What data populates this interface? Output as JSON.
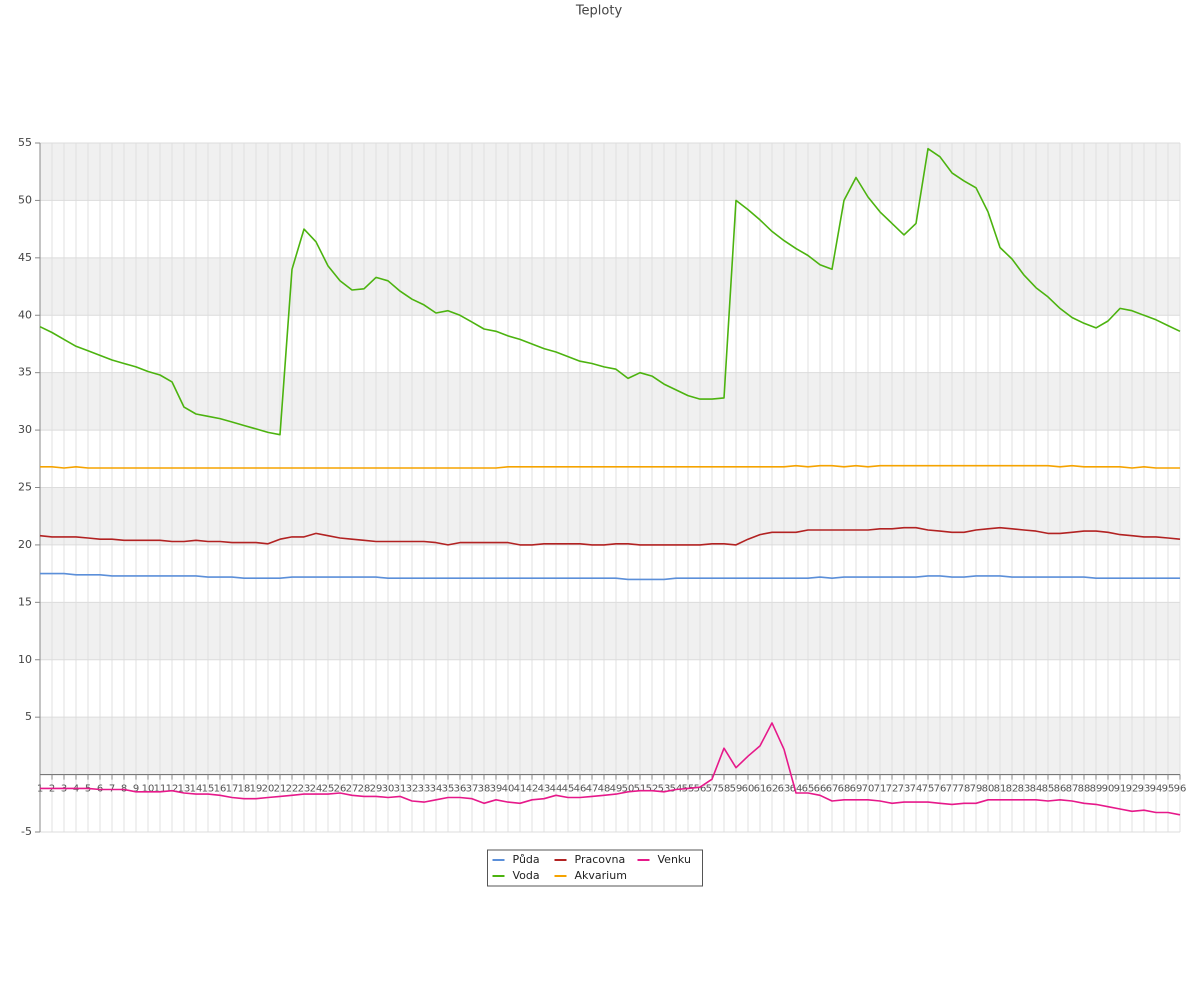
{
  "chart_data": {
    "type": "line",
    "title": "Teploty",
    "categories": [
      "1",
      "2",
      "3",
      "4",
      "5",
      "6",
      "7",
      "8",
      "9",
      "10",
      "11",
      "12",
      "13",
      "14",
      "15",
      "16",
      "17",
      "18",
      "19",
      "20",
      "21",
      "22",
      "23",
      "24",
      "25",
      "26",
      "27",
      "28",
      "29",
      "30",
      "31",
      "32",
      "33",
      "34",
      "35",
      "36",
      "37",
      "38",
      "39",
      "40",
      "41",
      "42",
      "43",
      "44",
      "45",
      "46",
      "47",
      "48",
      "49",
      "50",
      "51",
      "52",
      "53",
      "54",
      "55",
      "56",
      "57",
      "58",
      "59",
      "60",
      "61",
      "62",
      "63",
      "64",
      "65",
      "66",
      "67",
      "68",
      "69",
      "70",
      "71",
      "72",
      "73",
      "74",
      "75",
      "76",
      "77",
      "78",
      "79",
      "80",
      "81",
      "82",
      "83",
      "84",
      "85",
      "86",
      "87",
      "88",
      "89",
      "90",
      "91",
      "92",
      "93",
      "94",
      "95",
      "96"
    ],
    "series": [
      {
        "name": "Půda",
        "color": "#5b8fd9",
        "values": [
          17.5,
          17.5,
          17.5,
          17.4,
          17.4,
          17.4,
          17.3,
          17.3,
          17.3,
          17.3,
          17.3,
          17.3,
          17.3,
          17.3,
          17.2,
          17.2,
          17.2,
          17.1,
          17.1,
          17.1,
          17.1,
          17.2,
          17.2,
          17.2,
          17.2,
          17.2,
          17.2,
          17.2,
          17.2,
          17.1,
          17.1,
          17.1,
          17.1,
          17.1,
          17.1,
          17.1,
          17.1,
          17.1,
          17.1,
          17.1,
          17.1,
          17.1,
          17.1,
          17.1,
          17.1,
          17.1,
          17.1,
          17.1,
          17.1,
          17,
          17,
          17,
          17,
          17.1,
          17.1,
          17.1,
          17.1,
          17.1,
          17.1,
          17.1,
          17.1,
          17.1,
          17.1,
          17.1,
          17.1,
          17.2,
          17.1,
          17.2,
          17.2,
          17.2,
          17.2,
          17.2,
          17.2,
          17.2,
          17.3,
          17.3,
          17.2,
          17.2,
          17.3,
          17.3,
          17.3,
          17.2,
          17.2,
          17.2,
          17.2,
          17.2,
          17.2,
          17.2,
          17.1,
          17.1,
          17.1,
          17.1,
          17.1,
          17.1,
          17.1,
          17.1
        ]
      },
      {
        "name": "Voda",
        "color": "#4cb30f",
        "values": [
          39,
          38.5,
          37.9,
          37.3,
          36.9,
          36.5,
          36.1,
          35.8,
          35.5,
          35.1,
          34.8,
          34.2,
          32,
          31.4,
          31.2,
          31,
          30.7,
          30.4,
          30.1,
          29.8,
          29.6,
          44,
          47.5,
          46.4,
          44.3,
          43,
          42.2,
          42.3,
          43.3,
          43,
          42.1,
          41.4,
          40.9,
          40.2,
          40.4,
          40,
          39.4,
          38.8,
          38.6,
          38.2,
          37.9,
          37.5,
          37.1,
          36.8,
          36.4,
          36,
          35.8,
          35.5,
          35.3,
          34.5,
          35,
          34.7,
          34,
          33.5,
          33,
          32.7,
          32.7,
          32.8,
          50,
          49.2,
          48.3,
          47.3,
          46.5,
          45.8,
          45.2,
          44.4,
          44,
          50,
          52,
          50.3,
          49,
          48,
          47,
          48,
          54.5,
          53.8,
          52.4,
          51.7,
          51.1,
          49,
          45.9,
          44.9,
          43.5,
          42.4,
          41.6,
          40.6,
          39.8,
          39.3,
          38.9,
          39.5,
          40.6,
          40.4,
          40,
          39.6,
          39.1,
          38.6
        ]
      },
      {
        "name": "Pracovna",
        "color": "#b22222",
        "values": [
          20.8,
          20.7,
          20.7,
          20.7,
          20.6,
          20.5,
          20.5,
          20.4,
          20.4,
          20.4,
          20.4,
          20.3,
          20.3,
          20.4,
          20.3,
          20.3,
          20.2,
          20.2,
          20.2,
          20.1,
          20.5,
          20.7,
          20.7,
          21,
          20.8,
          20.6,
          20.5,
          20.4,
          20.3,
          20.3,
          20.3,
          20.3,
          20.3,
          20.2,
          20,
          20.2,
          20.2,
          20.2,
          20.2,
          20.2,
          20,
          20,
          20.1,
          20.1,
          20.1,
          20.1,
          20,
          20,
          20.1,
          20.1,
          20,
          20,
          20,
          20,
          20,
          20,
          20.1,
          20.1,
          20,
          20.5,
          20.9,
          21.1,
          21.1,
          21.1,
          21.3,
          21.3,
          21.3,
          21.3,
          21.3,
          21.3,
          21.4,
          21.4,
          21.5,
          21.5,
          21.3,
          21.2,
          21.1,
          21.1,
          21.3,
          21.4,
          21.5,
          21.4,
          21.3,
          21.2,
          21,
          21,
          21.1,
          21.2,
          21.2,
          21.1,
          20.9,
          20.8,
          20.7,
          20.7,
          20.6,
          20.5
        ]
      },
      {
        "name": "Akvarium",
        "color": "#f5a300",
        "values": [
          26.8,
          26.8,
          26.7,
          26.8,
          26.7,
          26.7,
          26.7,
          26.7,
          26.7,
          26.7,
          26.7,
          26.7,
          26.7,
          26.7,
          26.7,
          26.7,
          26.7,
          26.7,
          26.7,
          26.7,
          26.7,
          26.7,
          26.7,
          26.7,
          26.7,
          26.7,
          26.7,
          26.7,
          26.7,
          26.7,
          26.7,
          26.7,
          26.7,
          26.7,
          26.7,
          26.7,
          26.7,
          26.7,
          26.7,
          26.8,
          26.8,
          26.8,
          26.8,
          26.8,
          26.8,
          26.8,
          26.8,
          26.8,
          26.8,
          26.8,
          26.8,
          26.8,
          26.8,
          26.8,
          26.8,
          26.8,
          26.8,
          26.8,
          26.8,
          26.8,
          26.8,
          26.8,
          26.8,
          26.9,
          26.8,
          26.9,
          26.9,
          26.8,
          26.9,
          26.8,
          26.9,
          26.9,
          26.9,
          26.9,
          26.9,
          26.9,
          26.9,
          26.9,
          26.9,
          26.9,
          26.9,
          26.9,
          26.9,
          26.9,
          26.9,
          26.8,
          26.9,
          26.8,
          26.8,
          26.8,
          26.8,
          26.7,
          26.8,
          26.7,
          26.7,
          26.7
        ]
      },
      {
        "name": "Venku",
        "color": "#e6198a",
        "values": [
          -1.2,
          -1.2,
          -1.2,
          -1.2,
          -1.2,
          -1.3,
          -1.3,
          -1.3,
          -1.5,
          -1.5,
          -1.5,
          -1.4,
          -1.6,
          -1.7,
          -1.7,
          -1.8,
          -2,
          -2.1,
          -2.1,
          -2,
          -1.9,
          -1.8,
          -1.7,
          -1.7,
          -1.7,
          -1.6,
          -1.8,
          -1.9,
          -1.9,
          -2,
          -1.9,
          -2.3,
          -2.4,
          -2.2,
          -2,
          -2,
          -2.1,
          -2.5,
          -2.2,
          -2.4,
          -2.5,
          -2.2,
          -2.1,
          -1.8,
          -2,
          -2,
          -1.9,
          -1.8,
          -1.7,
          -1.5,
          -1.4,
          -1.4,
          -1.5,
          -1.3,
          -1.2,
          -1.1,
          -0.4,
          2.3,
          0.6,
          1.6,
          2.5,
          4.5,
          2.2,
          -1.6,
          -1.6,
          -1.8,
          -2.3,
          -2.2,
          -2.2,
          -2.2,
          -2.3,
          -2.5,
          -2.4,
          -2.4,
          -2.4,
          -2.5,
          -2.6,
          -2.5,
          -2.5,
          -2.2,
          -2.2,
          -2.2,
          -2.2,
          -2.2,
          -2.3,
          -2.2,
          -2.3,
          -2.5,
          -2.6,
          -2.8,
          -3,
          -3.2,
          -3.1,
          -3.3,
          -3.3,
          -3.5
        ]
      }
    ],
    "ylim": [
      -5,
      55
    ],
    "yticks": [
      -5,
      5,
      10,
      15,
      20,
      25,
      30,
      35,
      40,
      45,
      50,
      55
    ],
    "grid": true,
    "legend": "bottom"
  }
}
